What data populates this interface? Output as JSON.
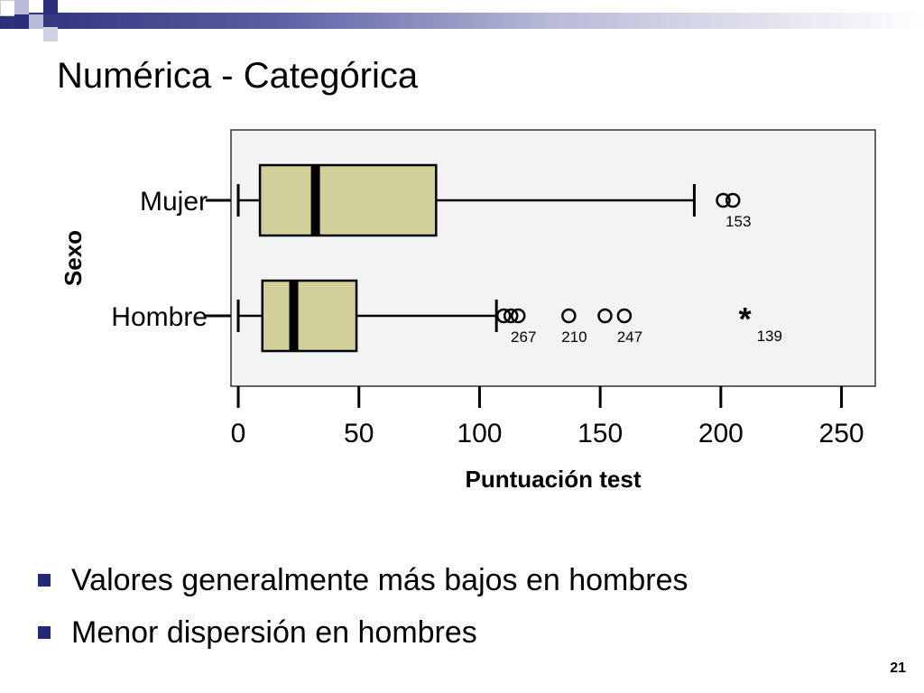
{
  "slide": {
    "title": "Numérica - Categórica",
    "bullets": [
      "Valores generalmente más bajos en hombres",
      "Menor dispersión en hombres"
    ],
    "page_number": "21",
    "accent_color": "#22297a"
  },
  "chart_data": {
    "type": "boxplot",
    "orientation": "horizontal",
    "title": "",
    "xlabel": "Puntuación test",
    "ylabel": "Sexo",
    "xlim": [
      -3,
      264
    ],
    "xticks": [
      0,
      50,
      100,
      150,
      200,
      250
    ],
    "box_color": "#d3cf9a",
    "plot_background": "#f3f3f3",
    "categories": [
      "Mujer",
      "Hombre"
    ],
    "series": [
      {
        "category": "Mujer",
        "whisker_low": 0,
        "q1": 9,
        "median": 32,
        "q3": 82,
        "whisker_high": 189,
        "outliers": [
          {
            "value": 201,
            "kind": "circle",
            "label": ""
          },
          {
            "value": 205,
            "kind": "circle",
            "label": "153"
          }
        ]
      },
      {
        "category": "Hombre",
        "whisker_low": 0,
        "q1": 10,
        "median": 23,
        "q3": 49,
        "whisker_high": 107,
        "outliers": [
          {
            "value": 110,
            "kind": "circle",
            "label": ""
          },
          {
            "value": 113,
            "kind": "circle",
            "label": ""
          },
          {
            "value": 116,
            "kind": "circle",
            "label": "267"
          },
          {
            "value": 137,
            "kind": "circle",
            "label": "210"
          },
          {
            "value": 152,
            "kind": "circle",
            "label": ""
          },
          {
            "value": 160,
            "kind": "circle",
            "label": "247"
          },
          {
            "value": 210,
            "kind": "extreme",
            "label": "139"
          }
        ]
      }
    ]
  }
}
